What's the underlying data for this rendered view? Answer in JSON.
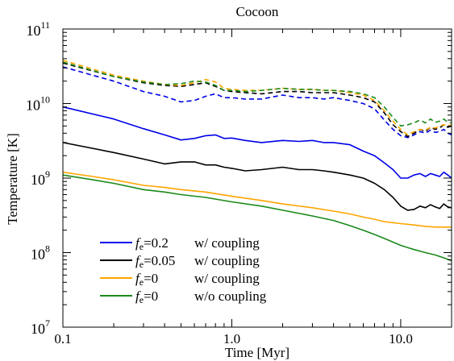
{
  "chart_data": {
    "type": "line",
    "title": "Cocoon",
    "xlabel": "Time [Myr]",
    "ylabel": "Temperature [K]",
    "xscale": "log",
    "yscale": "log",
    "xlim": [
      0.1,
      20
    ],
    "ylim": [
      10000000.0,
      100000000000.0
    ],
    "x_ticks": [
      {
        "value": 0.1,
        "label": "0.1"
      },
      {
        "value": 1.0,
        "label": "1.0"
      },
      {
        "value": 10.0,
        "label": "10.0"
      }
    ],
    "y_ticks": [
      {
        "value": 10000000.0,
        "base": "10",
        "exp": "7"
      },
      {
        "value": 100000000.0,
        "base": "10",
        "exp": "8"
      },
      {
        "value": 1000000000.0,
        "base": "10",
        "exp": "9"
      },
      {
        "value": 10000000000.0,
        "base": "10",
        "exp": "10"
      },
      {
        "value": 100000000000.0,
        "base": "10",
        "exp": "11"
      }
    ],
    "legend_position": "bottom-left",
    "grid": false,
    "series": [
      {
        "name": "fe=0.2 w/ coupling",
        "legend": {
          "f": "f",
          "sub": "e",
          "value": "=0.2",
          "desc": "w/ coupling"
        },
        "color": "#0000e6",
        "dash": "solid",
        "x": [
          0.1,
          0.2,
          0.3,
          0.4,
          0.5,
          0.6,
          0.7,
          0.8,
          0.9,
          1.0,
          1.2,
          1.5,
          2.0,
          2.5,
          3.0,
          3.5,
          4.0,
          5.0,
          6.0,
          7.0,
          8.0,
          9.0,
          10.0,
          11.0,
          12.0,
          13.0,
          14.0,
          15.0,
          16.0,
          17.0,
          18.0,
          19.0,
          20.0
        ],
        "y": [
          9000000000.0,
          6200000000.0,
          4600000000.0,
          3800000000.0,
          3250000000.0,
          3400000000.0,
          3700000000.0,
          3800000000.0,
          3400000000.0,
          3450000000.0,
          3200000000.0,
          3000000000.0,
          3200000000.0,
          3100000000.0,
          3200000000.0,
          3000000000.0,
          3000000000.0,
          2800000000.0,
          2300000000.0,
          2000000000.0,
          1600000000.0,
          1300000000.0,
          1000000000.0,
          1000000000.0,
          1100000000.0,
          1150000000.0,
          1050000000.0,
          1150000000.0,
          1100000000.0,
          1050000000.0,
          1200000000.0,
          1100000000.0,
          1000000000.0
        ]
      },
      {
        "name": "fe=0.05 w/ coupling",
        "legend": {
          "f": "f",
          "sub": "e",
          "value": "=0.05",
          "desc": "w/ coupling"
        },
        "color": "#000000",
        "dash": "solid",
        "x": [
          0.1,
          0.2,
          0.3,
          0.4,
          0.5,
          0.6,
          0.7,
          0.8,
          0.9,
          1.0,
          1.2,
          1.5,
          2.0,
          2.5,
          3.0,
          3.5,
          4.0,
          5.0,
          6.0,
          7.0,
          8.0,
          9.0,
          10.0,
          11.0,
          12.0,
          13.0,
          14.0,
          15.0,
          16.0,
          17.0,
          18.0,
          19.0,
          20.0
        ],
        "y": [
          3000000000.0,
          2200000000.0,
          1800000000.0,
          1550000000.0,
          1650000000.0,
          1650000000.0,
          1500000000.0,
          1500000000.0,
          1400000000.0,
          1350000000.0,
          1250000000.0,
          1300000000.0,
          1400000000.0,
          1300000000.0,
          1300000000.0,
          1250000000.0,
          1200000000.0,
          1100000000.0,
          1000000000.0,
          850000000.0,
          700000000.0,
          550000000.0,
          420000000.0,
          370000000.0,
          380000000.0,
          420000000.0,
          400000000.0,
          440000000.0,
          410000000.0,
          390000000.0,
          450000000.0,
          410000000.0,
          400000000.0
        ]
      },
      {
        "name": "fe=0 w/ coupling",
        "legend": {
          "f": "f",
          "sub": "e",
          "value": "=0",
          "desc": "w/ coupling"
        },
        "color": "#ffa500",
        "dash": "solid",
        "x": [
          0.1,
          0.15,
          0.2,
          0.3,
          0.4,
          0.5,
          0.7,
          1.0,
          1.5,
          2.0,
          3.0,
          4.0,
          5.0,
          6.0,
          7.0,
          8.0,
          10.0,
          12.0,
          14.0,
          16.0,
          18.0,
          20.0
        ],
        "y": [
          1200000000.0,
          1050000000.0,
          950000000.0,
          800000000.0,
          750000000.0,
          700000000.0,
          650000000.0,
          570000000.0,
          500000000.0,
          450000000.0,
          400000000.0,
          360000000.0,
          330000000.0,
          300000000.0,
          280000000.0,
          260000000.0,
          245000000.0,
          235000000.0,
          225000000.0,
          220000000.0,
          220000000.0,
          220000000.0
        ]
      },
      {
        "name": "fe=0 w/o coupling",
        "legend": {
          "f": "f",
          "sub": "e",
          "value": "=0",
          "desc": "w/o coupling"
        },
        "color": "#1a8a1a",
        "dash": "solid",
        "x": [
          0.1,
          0.15,
          0.2,
          0.3,
          0.4,
          0.5,
          0.7,
          1.0,
          1.5,
          2.0,
          3.0,
          4.0,
          5.0,
          6.0,
          7.0,
          8.0,
          10.0,
          12.0,
          14.0,
          16.0,
          18.0,
          20.0
        ],
        "y": [
          1100000000.0,
          950000000.0,
          850000000.0,
          700000000.0,
          650000000.0,
          600000000.0,
          550000000.0,
          480000000.0,
          420000000.0,
          370000000.0,
          310000000.0,
          270000000.0,
          230000000.0,
          200000000.0,
          175000000.0,
          155000000.0,
          125000000.0,
          110000000.0,
          100000000.0,
          93000000.0,
          85000000.0,
          78000000.0
        ]
      },
      {
        "name": "fe=0.2 w/ coupling (dashed)",
        "color": "#0000e6",
        "dash": "dashed",
        "x": [
          0.1,
          0.2,
          0.3,
          0.4,
          0.5,
          0.6,
          0.7,
          0.8,
          0.9,
          1.0,
          1.2,
          1.5,
          2.0,
          2.5,
          3.0,
          3.5,
          4.0,
          5.0,
          6.0,
          7.0,
          8.0,
          9.0,
          10.0,
          11.0,
          12.0,
          13.0,
          14.0,
          15.0,
          16.0,
          17.0,
          18.0,
          19.0,
          20.0
        ],
        "y": [
          31000000000.0,
          20000000000.0,
          14500000000.0,
          12500000000.0,
          10500000000.0,
          11000000000.0,
          12500000000.0,
          13500000000.0,
          12000000000.0,
          12000000000.0,
          11500000000.0,
          11500000000.0,
          13000000000.0,
          12000000000.0,
          12000000000.0,
          11500000000.0,
          12000000000.0,
          11000000000.0,
          10000000000.0,
          8500000000.0,
          6000000000.0,
          4500000000.0,
          3700000000.0,
          3500000000.0,
          3800000000.0,
          4200000000.0,
          4000000000.0,
          4400000000.0,
          4100000000.0,
          4200000000.0,
          4500000000.0,
          4000000000.0,
          3800000000.0
        ]
      },
      {
        "name": "fe=0.05 w/ coupling (dashed)",
        "color": "#000000",
        "dash": "dashed",
        "x": [
          0.1,
          0.2,
          0.3,
          0.4,
          0.5,
          0.6,
          0.7,
          0.8,
          0.9,
          1.0,
          1.2,
          1.5,
          2.0,
          2.5,
          3.0,
          3.5,
          4.0,
          5.0,
          6.0,
          7.0,
          8.0,
          9.0,
          10.0,
          11.0,
          12.0,
          13.0,
          14.0,
          15.0,
          16.0,
          17.0,
          18.0,
          19.0,
          20.0
        ],
        "y": [
          35000000000.0,
          23000000000.0,
          19000000000.0,
          17500000000.0,
          17000000000.0,
          18000000000.0,
          19000000000.0,
          17000000000.0,
          15000000000.0,
          14500000000.0,
          14000000000.0,
          13500000000.0,
          14500000000.0,
          14500000000.0,
          14000000000.0,
          14000000000.0,
          14000000000.0,
          13000000000.0,
          12000000000.0,
          10500000000.0,
          7500000000.0,
          5200000000.0,
          4200000000.0,
          3600000000.0,
          4000000000.0,
          4500000000.0,
          4200000000.0,
          4800000000.0,
          4500000000.0,
          4700000000.0,
          5200000000.0,
          4800000000.0,
          5000000000.0
        ]
      },
      {
        "name": "fe=0 w/ coupling (dashed)",
        "color": "#ffa500",
        "dash": "dashed",
        "x": [
          0.1,
          0.2,
          0.3,
          0.4,
          0.5,
          0.6,
          0.7,
          0.8,
          0.9,
          1.0,
          1.2,
          1.5,
          2.0,
          2.5,
          3.0,
          3.5,
          4.0,
          5.0,
          6.0,
          7.0,
          8.0,
          9.0,
          10.0,
          11.0,
          12.0,
          13.0,
          14.0,
          15.0,
          16.0,
          17.0,
          18.0,
          19.0,
          20.0
        ],
        "y": [
          38000000000.0,
          24000000000.0,
          20000000000.0,
          18000000000.0,
          17500000000.0,
          19000000000.0,
          21000000000.0,
          19500000000.0,
          16000000000.0,
          15500000000.0,
          15000000000.0,
          15000000000.0,
          16000000000.0,
          15500000000.0,
          15500000000.0,
          15000000000.0,
          15000000000.0,
          14000000000.0,
          13000000000.0,
          11000000000.0,
          8000000000.0,
          5800000000.0,
          4500000000.0,
          3800000000.0,
          4200000000.0,
          4500000000.0,
          4400000000.0,
          4800000000.0,
          4700000000.0,
          5000000000.0,
          5200000000.0,
          5000000000.0,
          5200000000.0
        ]
      },
      {
        "name": "fe=0 w/o coupling (dashed)",
        "color": "#1a8a1a",
        "dash": "dashed",
        "x": [
          0.1,
          0.2,
          0.3,
          0.4,
          0.5,
          0.6,
          0.7,
          0.8,
          0.9,
          1.0,
          1.2,
          1.5,
          2.0,
          2.5,
          3.0,
          3.5,
          4.0,
          5.0,
          6.0,
          7.0,
          8.0,
          9.0,
          10.0,
          11.0,
          12.0,
          13.0,
          14.0,
          15.0,
          16.0,
          17.0,
          18.0,
          19.0,
          20.0
        ],
        "y": [
          36000000000.0,
          23000000000.0,
          19500000000.0,
          18000000000.0,
          18500000000.0,
          20000000000.0,
          19500000000.0,
          17500000000.0,
          15000000000.0,
          15000000000.0,
          14500000000.0,
          15000000000.0,
          16000000000.0,
          15500000000.0,
          15500000000.0,
          15000000000.0,
          15000000000.0,
          14500000000.0,
          13500000000.0,
          12000000000.0,
          9000000000.0,
          6500000000.0,
          5000000000.0,
          5200000000.0,
          5500000000.0,
          6000000000.0,
          5500000000.0,
          6200000000.0,
          5600000000.0,
          5800000000.0,
          6200000000.0,
          5600000000.0,
          5500000000.0
        ]
      }
    ]
  }
}
